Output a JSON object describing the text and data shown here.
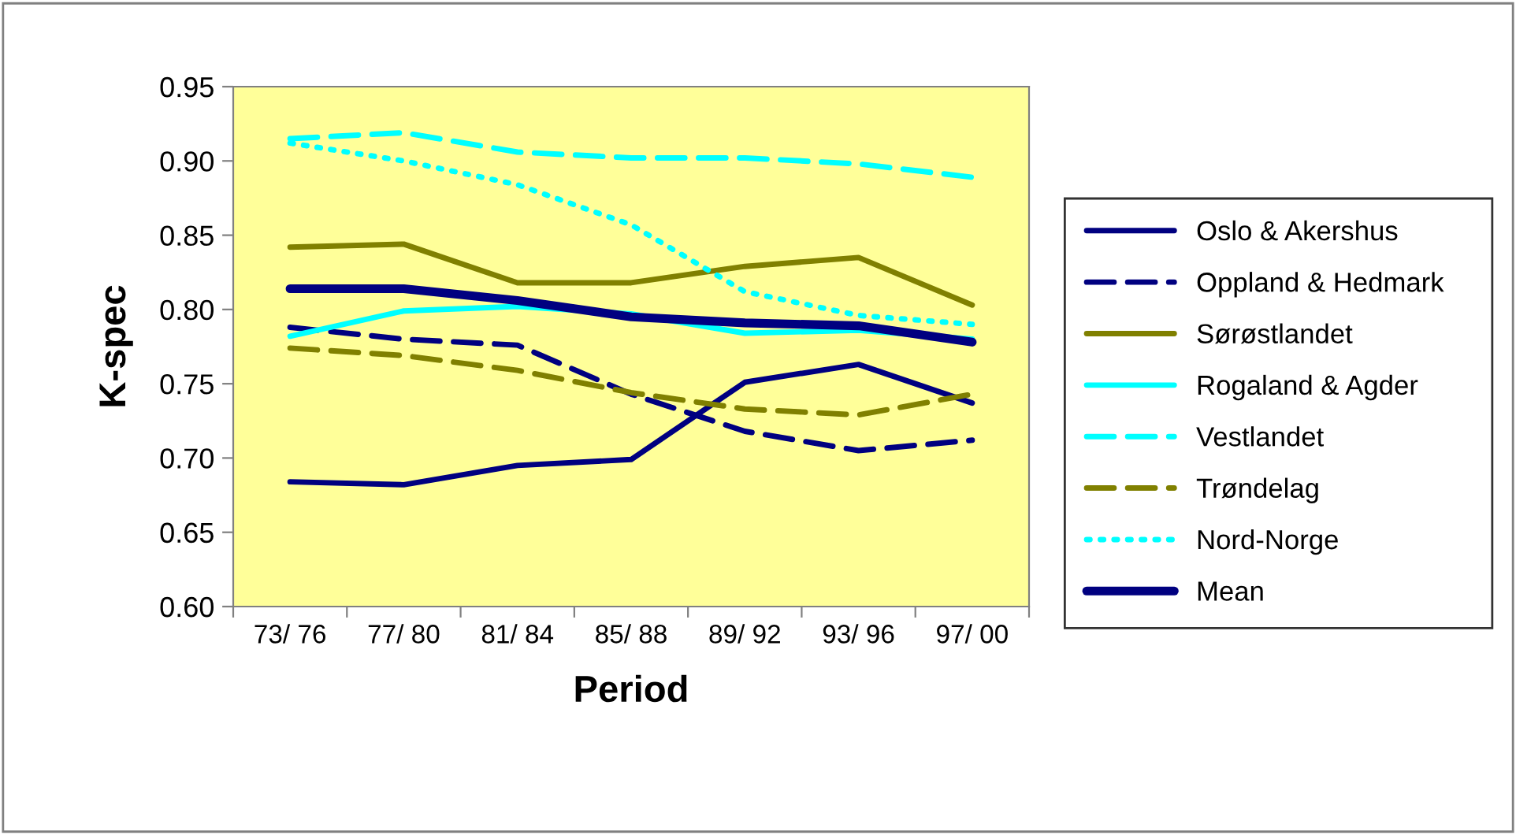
{
  "chart_data": {
    "type": "line",
    "xlabel": "Period",
    "ylabel": "K-spec",
    "categories": [
      "73/ 76",
      "77/ 80",
      "81/ 84",
      "85/ 88",
      "89/ 92",
      "93/ 96",
      "97/ 00"
    ],
    "ylim": [
      0.6,
      0.95
    ],
    "yticks": [
      {
        "value": 0.6,
        "label": "0.60"
      },
      {
        "value": 0.65,
        "label": "0.65"
      },
      {
        "value": 0.7,
        "label": "0.70"
      },
      {
        "value": 0.75,
        "label": "0.75"
      },
      {
        "value": 0.8,
        "label": "0.80"
      },
      {
        "value": 0.85,
        "label": "0.85"
      },
      {
        "value": 0.9,
        "label": "0.90"
      },
      {
        "value": 0.95,
        "label": "0.95"
      }
    ],
    "grid": false,
    "legend": "right",
    "marker": "none",
    "series": [
      {
        "name": "Oslo & Akershus",
        "color": "#000080",
        "line_style": "solid",
        "values": [
          0.684,
          0.682,
          0.695,
          0.699,
          0.751,
          0.763,
          0.737
        ]
      },
      {
        "name": "Oppland & Hedmark",
        "color": "#000080",
        "line_style": "dashed",
        "values": [
          0.788,
          0.78,
          0.776,
          0.743,
          0.718,
          0.705,
          0.712
        ]
      },
      {
        "name": "Sørøstlandet",
        "color": "#808000",
        "line_style": "solid",
        "values": [
          0.842,
          0.844,
          0.818,
          0.818,
          0.829,
          0.835,
          0.803
        ]
      },
      {
        "name": "Rogaland & Agder",
        "color": "#00ffff",
        "line_style": "solid",
        "values": [
          0.782,
          0.799,
          0.802,
          0.797,
          0.784,
          0.786,
          0.78
        ]
      },
      {
        "name": "Vestlandet",
        "color": "#00ffff",
        "line_style": "dashed",
        "values": [
          0.915,
          0.919,
          0.906,
          0.902,
          0.902,
          0.898,
          0.889
        ]
      },
      {
        "name": "Trøndelag",
        "color": "#808000",
        "line_style": "dashed",
        "values": [
          0.774,
          0.769,
          0.759,
          0.744,
          0.733,
          0.729,
          0.743
        ]
      },
      {
        "name": "Nord-Norge",
        "color": "#00ffff",
        "line_style": "dotted",
        "values": [
          0.912,
          0.9,
          0.884,
          0.857,
          0.812,
          0.796,
          0.79
        ]
      },
      {
        "name": "Mean",
        "color": "#000080",
        "line_style": "solid",
        "values": [
          0.814,
          0.814,
          0.806,
          0.795,
          0.791,
          0.789,
          0.778
        ]
      }
    ]
  }
}
